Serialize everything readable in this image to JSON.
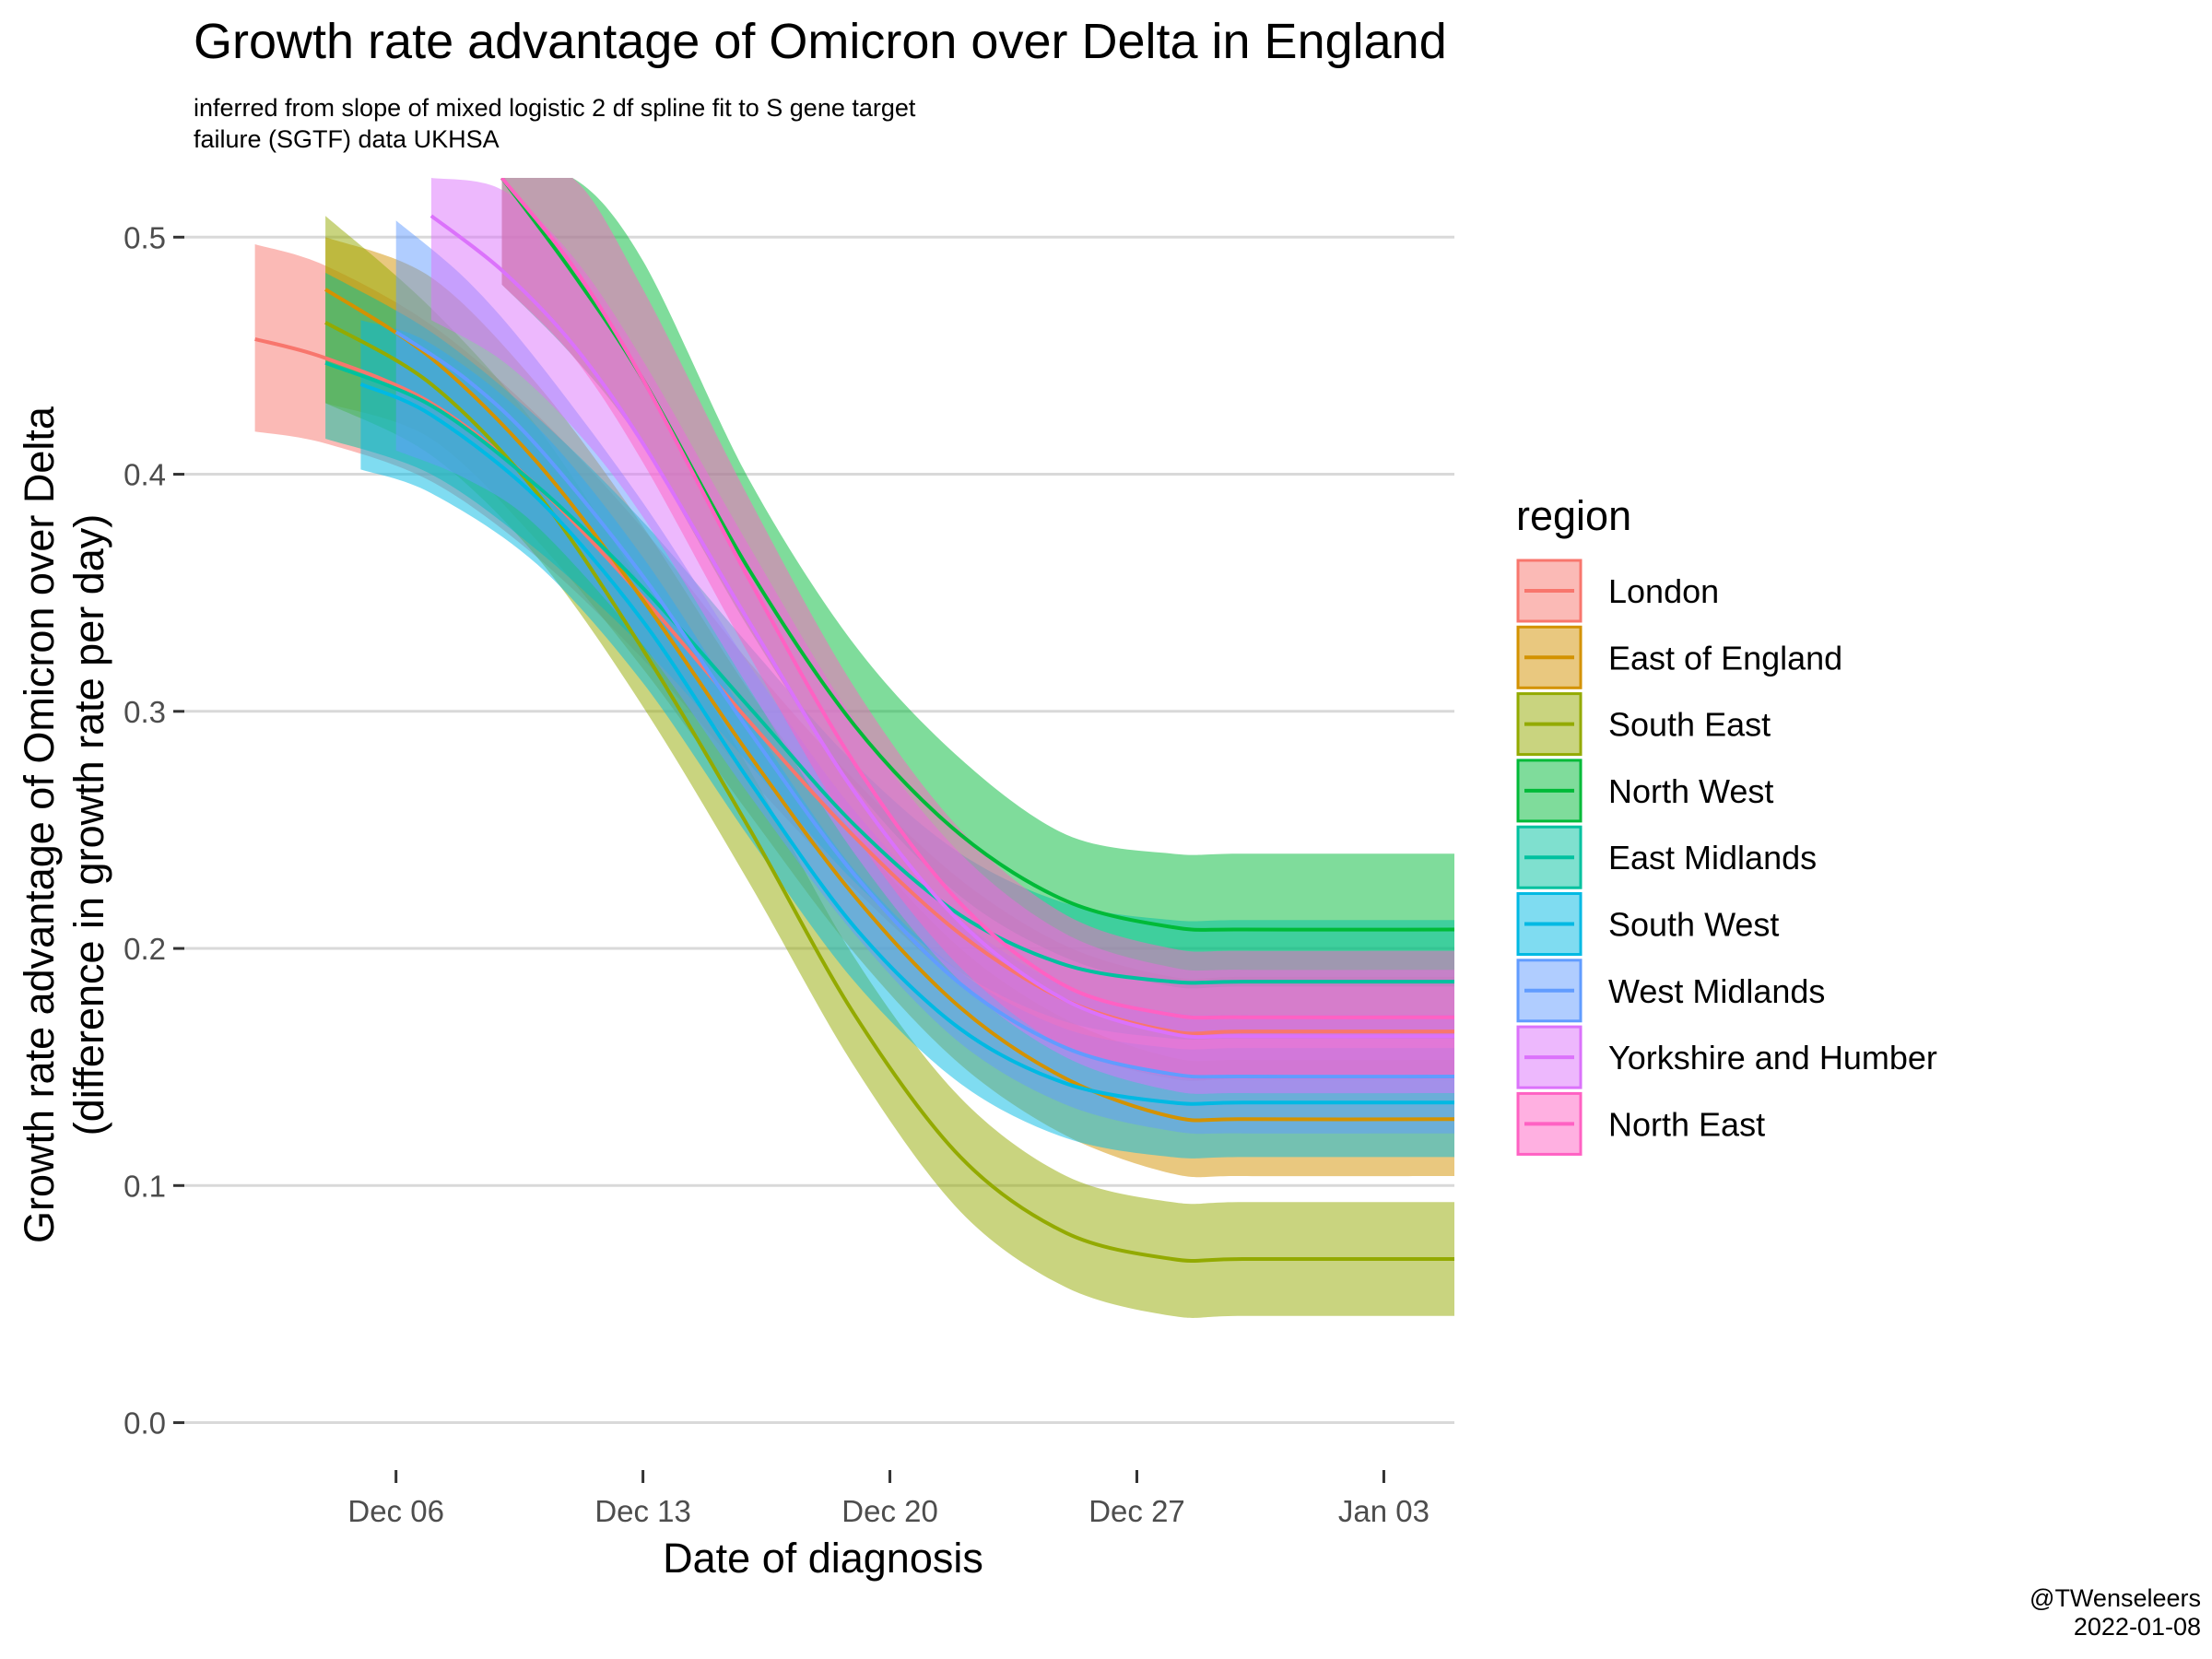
{
  "chart_data": {
    "type": "line",
    "title": "Growth rate advantage of Omicron over Delta in England",
    "subtitle_lines": [
      "inferred from slope of mixed logistic 2 df spline fit to S gene target",
      "failure (SGTF) data UKHSA"
    ],
    "xlabel": "Date of diagnosis",
    "ylabel_lines": [
      "Growth rate advantage of Omicron over Delta",
      "(difference in growth rate per day)"
    ],
    "x_scale": "date",
    "x_ticks": [
      {
        "date": "2021-12-06",
        "label": "Dec 06"
      },
      {
        "date": "2021-12-13",
        "label": "Dec 13"
      },
      {
        "date": "2021-12-20",
        "label": "Dec 20"
      },
      {
        "date": "2021-12-27",
        "label": "Dec 27"
      },
      {
        "date": "2022-01-03",
        "label": "Jan 03"
      }
    ],
    "xlim": [
      "2021-11-30",
      "2022-01-05"
    ],
    "ylim": [
      -0.02,
      0.525
    ],
    "y_ticks": [
      {
        "value": 0.0,
        "label": "0.0"
      },
      {
        "value": 0.1,
        "label": "0.1"
      },
      {
        "value": 0.2,
        "label": "0.2"
      },
      {
        "value": 0.3,
        "label": "0.3"
      },
      {
        "value": 0.4,
        "label": "0.4"
      },
      {
        "value": 0.5,
        "label": "0.5"
      }
    ],
    "grid": "horizontal major",
    "legend": {
      "title": "region",
      "position": "right"
    },
    "series": [
      {
        "name": "London",
        "color": "#F8766D",
        "points": [
          [
            "2021-12-02",
            0.457,
            0.418,
            0.497
          ],
          [
            "2021-12-04",
            0.449,
            0.413,
            0.488
          ],
          [
            "2021-12-07",
            0.43,
            0.397,
            0.463
          ],
          [
            "2021-12-10",
            0.395,
            0.365,
            0.425
          ],
          [
            "2021-12-13",
            0.348,
            0.322,
            0.377
          ],
          [
            "2021-12-16",
            0.296,
            0.272,
            0.321
          ],
          [
            "2021-12-19",
            0.247,
            0.225,
            0.271
          ],
          [
            "2021-12-22",
            0.206,
            0.185,
            0.229
          ],
          [
            "2021-12-25",
            0.178,
            0.158,
            0.201
          ],
          [
            "2021-12-28",
            0.165,
            0.145,
            0.188
          ],
          [
            "2021-12-30",
            0.165,
            0.145,
            0.188
          ],
          [
            "2022-01-05",
            0.165,
            0.145,
            0.188
          ]
        ]
      },
      {
        "name": "East of England",
        "color": "#D39200",
        "points": [
          [
            "2021-12-04",
            0.478,
            0.43,
            0.5
          ],
          [
            "2021-12-07",
            0.449,
            0.415,
            0.483
          ],
          [
            "2021-12-10",
            0.405,
            0.372,
            0.438
          ],
          [
            "2021-12-13",
            0.347,
            0.318,
            0.378
          ],
          [
            "2021-12-16",
            0.282,
            0.257,
            0.309
          ],
          [
            "2021-12-19",
            0.222,
            0.198,
            0.248
          ],
          [
            "2021-12-22",
            0.175,
            0.151,
            0.2
          ],
          [
            "2021-12-25",
            0.145,
            0.121,
            0.17
          ],
          [
            "2021-12-28",
            0.129,
            0.105,
            0.154
          ],
          [
            "2021-12-30",
            0.128,
            0.104,
            0.153
          ],
          [
            "2022-01-05",
            0.128,
            0.104,
            0.153
          ]
        ]
      },
      {
        "name": "South East",
        "color": "#93AA00",
        "points": [
          [
            "2021-12-04",
            0.464,
            0.43,
            0.509
          ],
          [
            "2021-12-07",
            0.438,
            0.408,
            0.47
          ],
          [
            "2021-12-10",
            0.392,
            0.365,
            0.42
          ],
          [
            "2021-12-13",
            0.326,
            0.302,
            0.352
          ],
          [
            "2021-12-16",
            0.251,
            0.228,
            0.276
          ],
          [
            "2021-12-19",
            0.172,
            0.15,
            0.196
          ],
          [
            "2021-12-22",
            0.112,
            0.089,
            0.137
          ],
          [
            "2021-12-25",
            0.08,
            0.057,
            0.104
          ],
          [
            "2021-12-28",
            0.069,
            0.045,
            0.093
          ],
          [
            "2021-12-30",
            0.069,
            0.045,
            0.093
          ],
          [
            "2022-01-05",
            0.069,
            0.045,
            0.093
          ]
        ]
      },
      {
        "name": "North West",
        "color": "#00BA38",
        "points": [
          [
            "2021-12-09",
            0.525,
            0.48,
            0.525
          ],
          [
            "2021-12-11",
            0.485,
            0.45,
            0.525
          ],
          [
            "2021-12-13",
            0.44,
            0.412,
            0.49
          ],
          [
            "2021-12-16",
            0.36,
            0.335,
            0.398
          ],
          [
            "2021-12-19",
            0.294,
            0.268,
            0.328
          ],
          [
            "2021-12-22",
            0.248,
            0.222,
            0.28
          ],
          [
            "2021-12-25",
            0.22,
            0.196,
            0.248
          ],
          [
            "2021-12-28",
            0.209,
            0.184,
            0.24
          ],
          [
            "2021-12-30",
            0.208,
            0.184,
            0.24
          ],
          [
            "2022-01-05",
            0.208,
            0.184,
            0.24
          ]
        ]
      },
      {
        "name": "East Midlands",
        "color": "#00C19F",
        "points": [
          [
            "2021-12-04",
            0.447,
            0.415,
            0.485
          ],
          [
            "2021-12-07",
            0.429,
            0.4,
            0.46
          ],
          [
            "2021-12-10",
            0.395,
            0.368,
            0.424
          ],
          [
            "2021-12-13",
            0.352,
            0.327,
            0.38
          ],
          [
            "2021-12-16",
            0.302,
            0.278,
            0.328
          ],
          [
            "2021-12-19",
            0.252,
            0.228,
            0.278
          ],
          [
            "2021-12-22",
            0.214,
            0.19,
            0.24
          ],
          [
            "2021-12-25",
            0.193,
            0.169,
            0.219
          ],
          [
            "2021-12-28",
            0.186,
            0.162,
            0.212
          ],
          [
            "2021-12-30",
            0.186,
            0.162,
            0.212
          ],
          [
            "2022-01-05",
            0.186,
            0.162,
            0.212
          ]
        ]
      },
      {
        "name": "South West",
        "color": "#00B9E3",
        "points": [
          [
            "2021-12-05",
            0.438,
            0.402,
            0.465
          ],
          [
            "2021-12-07",
            0.425,
            0.392,
            0.455
          ],
          [
            "2021-12-10",
            0.39,
            0.362,
            0.42
          ],
          [
            "2021-12-13",
            0.338,
            0.312,
            0.365
          ],
          [
            "2021-12-16",
            0.271,
            0.247,
            0.297
          ],
          [
            "2021-12-19",
            0.209,
            0.186,
            0.233
          ],
          [
            "2021-12-22",
            0.166,
            0.143,
            0.19
          ],
          [
            "2021-12-25",
            0.143,
            0.12,
            0.166
          ],
          [
            "2021-12-28",
            0.135,
            0.112,
            0.158
          ],
          [
            "2021-12-30",
            0.135,
            0.112,
            0.158
          ],
          [
            "2022-01-05",
            0.135,
            0.112,
            0.158
          ]
        ]
      },
      {
        "name": "West Midlands",
        "color": "#619CFF",
        "points": [
          [
            "2021-12-06",
            0.46,
            0.41,
            0.507
          ],
          [
            "2021-12-08",
            0.44,
            0.398,
            0.482
          ],
          [
            "2021-12-10",
            0.412,
            0.378,
            0.448
          ],
          [
            "2021-12-13",
            0.357,
            0.328,
            0.388
          ],
          [
            "2021-12-16",
            0.292,
            0.265,
            0.32
          ],
          [
            "2021-12-19",
            0.231,
            0.206,
            0.258
          ],
          [
            "2021-12-22",
            0.185,
            0.16,
            0.212
          ],
          [
            "2021-12-25",
            0.158,
            0.134,
            0.184
          ],
          [
            "2021-12-28",
            0.147,
            0.123,
            0.173
          ],
          [
            "2021-12-30",
            0.146,
            0.122,
            0.172
          ],
          [
            "2022-01-05",
            0.146,
            0.122,
            0.172
          ]
        ]
      },
      {
        "name": "Yorkshire and Humber",
        "color": "#DB72FB",
        "points": [
          [
            "2021-12-07",
            0.509,
            0.465,
            0.525
          ],
          [
            "2021-12-09",
            0.486,
            0.448,
            0.52
          ],
          [
            "2021-12-11",
            0.455,
            0.42,
            0.492
          ],
          [
            "2021-12-13",
            0.413,
            0.382,
            0.448
          ],
          [
            "2021-12-16",
            0.338,
            0.31,
            0.37
          ],
          [
            "2021-12-19",
            0.266,
            0.24,
            0.296
          ],
          [
            "2021-12-22",
            0.211,
            0.186,
            0.24
          ],
          [
            "2021-12-25",
            0.178,
            0.154,
            0.206
          ],
          [
            "2021-12-28",
            0.164,
            0.14,
            0.192
          ],
          [
            "2021-12-30",
            0.163,
            0.139,
            0.191
          ],
          [
            "2022-01-05",
            0.163,
            0.139,
            0.191
          ]
        ]
      },
      {
        "name": "North East",
        "color": "#FF61C3",
        "points": [
          [
            "2021-12-09",
            0.525,
            0.48,
            0.525
          ],
          [
            "2021-12-11",
            0.488,
            0.45,
            0.525
          ],
          [
            "2021-12-13",
            0.44,
            0.405,
            0.478
          ],
          [
            "2021-12-16",
            0.356,
            0.324,
            0.39
          ],
          [
            "2021-12-19",
            0.278,
            0.248,
            0.31
          ],
          [
            "2021-12-22",
            0.219,
            0.192,
            0.25
          ],
          [
            "2021-12-25",
            0.184,
            0.158,
            0.214
          ],
          [
            "2021-12-28",
            0.172,
            0.146,
            0.2
          ],
          [
            "2021-12-30",
            0.171,
            0.145,
            0.199
          ],
          [
            "2022-01-05",
            0.171,
            0.145,
            0.199
          ]
        ]
      }
    ]
  },
  "caption": {
    "handle": "@TWenseleers",
    "date": "2022-01-08"
  }
}
